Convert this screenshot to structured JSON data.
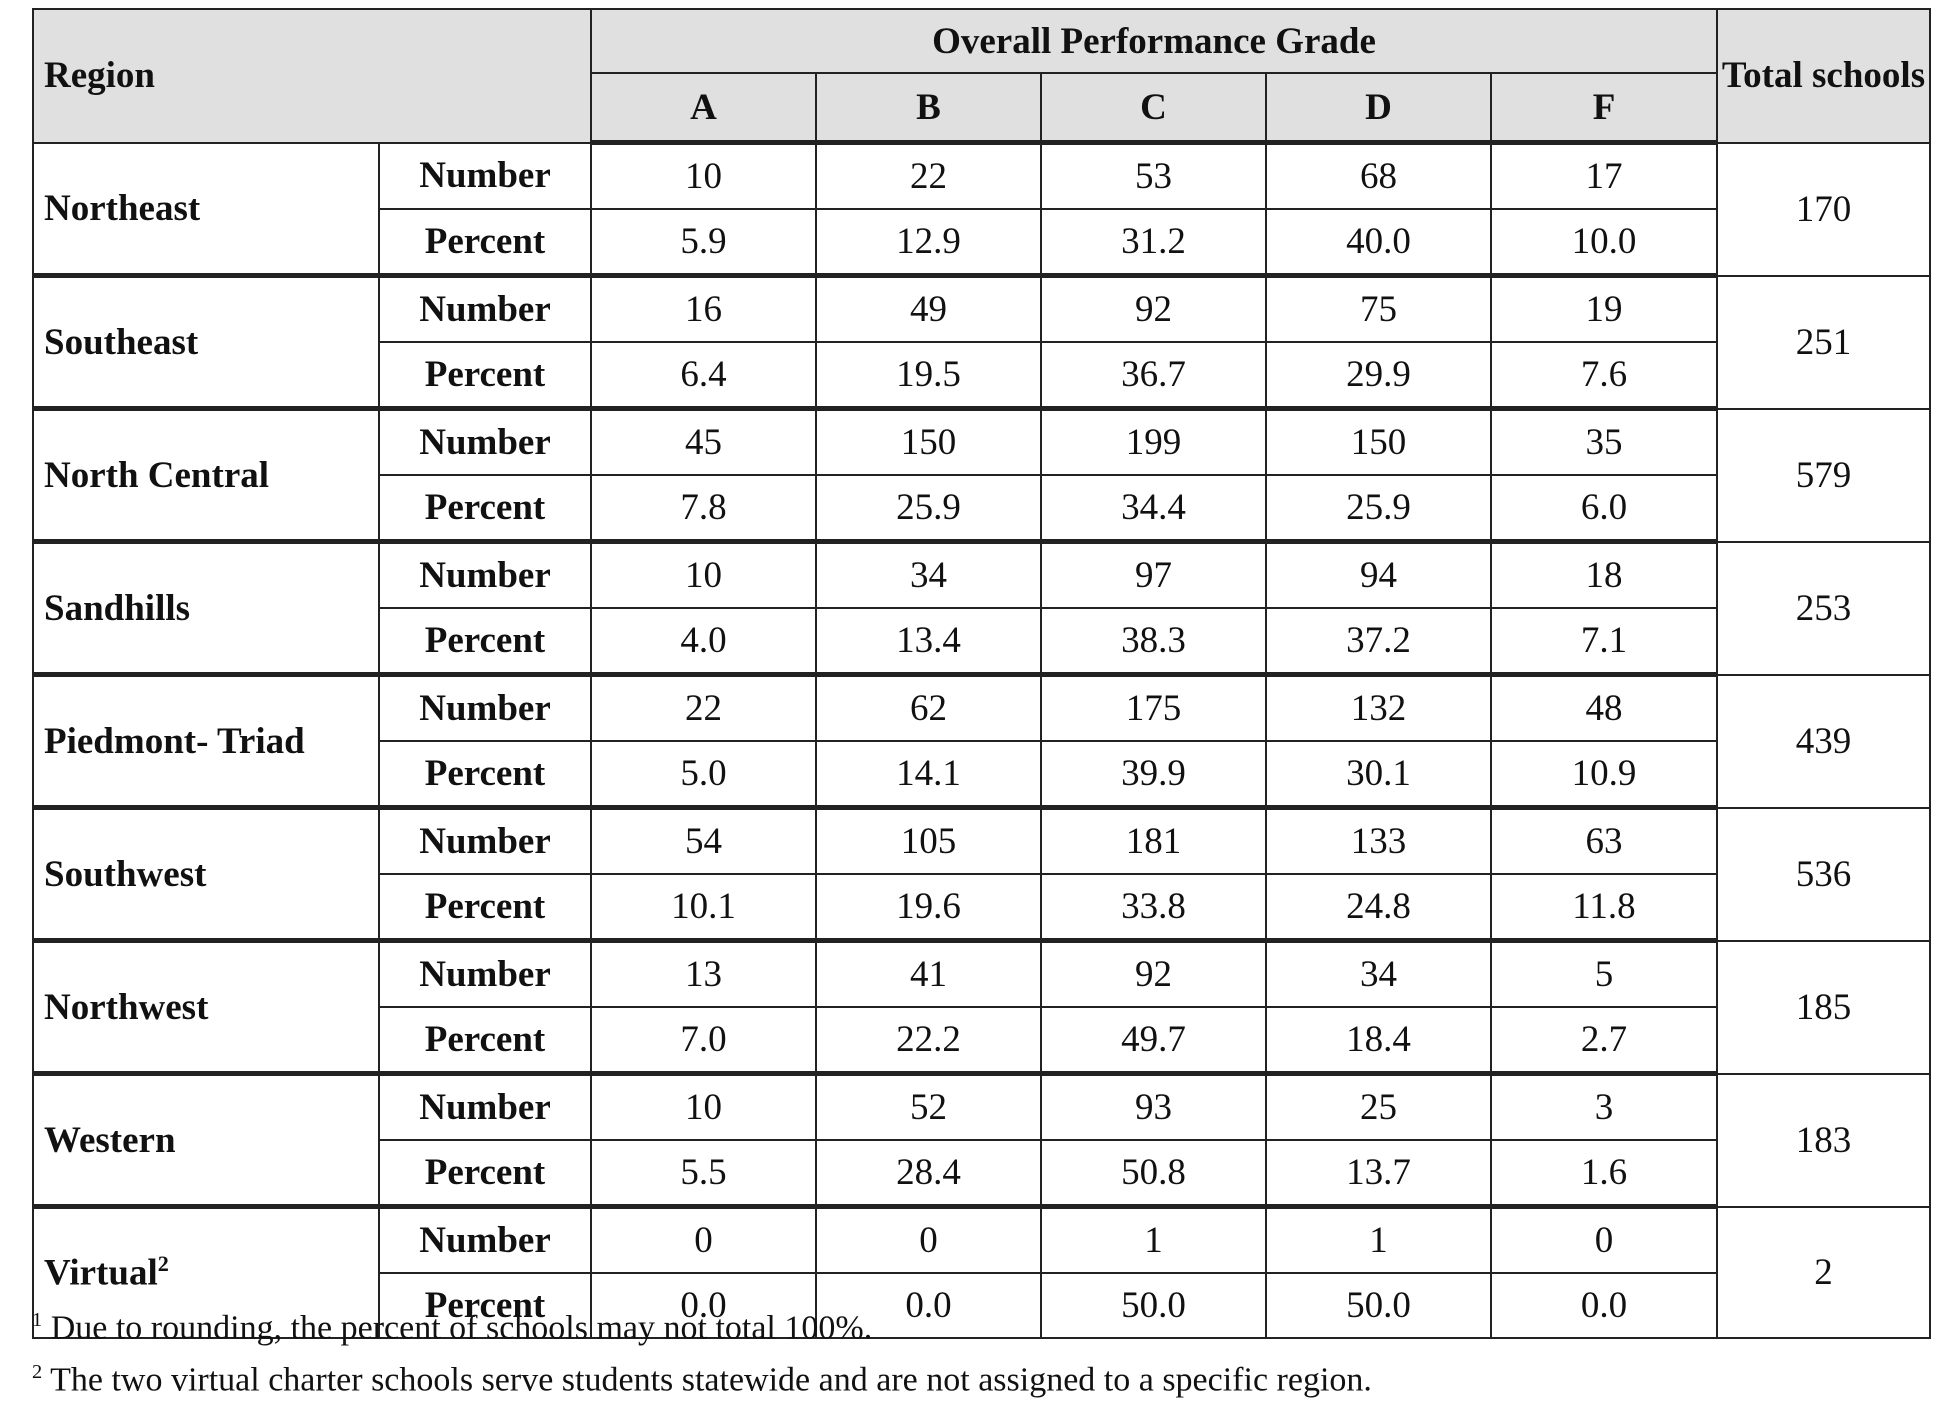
{
  "header": {
    "region": "Region",
    "group": "Overall Performance Grade",
    "grades": [
      "A",
      "B",
      "C",
      "D",
      "F"
    ],
    "total": "Total schools"
  },
  "row_labels": {
    "number": "Number",
    "percent": "Percent"
  },
  "rows": [
    {
      "region": "Northeast",
      "number": [
        "10",
        "22",
        "53",
        "68",
        "17"
      ],
      "percent": [
        "5.9",
        "12.9",
        "31.2",
        "40.0",
        "10.0"
      ],
      "total": "170"
    },
    {
      "region": "Southeast",
      "number": [
        "16",
        "49",
        "92",
        "75",
        "19"
      ],
      "percent": [
        "6.4",
        "19.5",
        "36.7",
        "29.9",
        "7.6"
      ],
      "total": "251"
    },
    {
      "region": "North Central",
      "number": [
        "45",
        "150",
        "199",
        "150",
        "35"
      ],
      "percent": [
        "7.8",
        "25.9",
        "34.4",
        "25.9",
        "6.0"
      ],
      "total": "579"
    },
    {
      "region": "Sandhills",
      "number": [
        "10",
        "34",
        "97",
        "94",
        "18"
      ],
      "percent": [
        "4.0",
        "13.4",
        "38.3",
        "37.2",
        "7.1"
      ],
      "total": "253"
    },
    {
      "region": "Piedmont- Triad",
      "number": [
        "22",
        "62",
        "175",
        "132",
        "48"
      ],
      "percent": [
        "5.0",
        "14.1",
        "39.9",
        "30.1",
        "10.9"
      ],
      "total": "439"
    },
    {
      "region": "Southwest",
      "number": [
        "54",
        "105",
        "181",
        "133",
        "63"
      ],
      "percent": [
        "10.1",
        "19.6",
        "33.8",
        "24.8",
        "11.8"
      ],
      "total": "536"
    },
    {
      "region": "Northwest",
      "number": [
        "13",
        "41",
        "92",
        "34",
        "5"
      ],
      "percent": [
        "7.0",
        "22.2",
        "49.7",
        "18.4",
        "2.7"
      ],
      "total": "185"
    },
    {
      "region": "Western",
      "number": [
        "10",
        "52",
        "93",
        "25",
        "3"
      ],
      "percent": [
        "5.5",
        "28.4",
        "50.8",
        "13.7",
        "1.6"
      ],
      "total": "183"
    },
    {
      "region": "Virtual",
      "region_note": "2",
      "number": [
        "0",
        "0",
        "1",
        "1",
        "0"
      ],
      "percent": [
        "0.0",
        "0.0",
        "50.0",
        "50.0",
        "0.0"
      ],
      "total": "2"
    }
  ],
  "footnotes": [
    {
      "mark": "1",
      "text": "Due to rounding, the percent of schools may not total 100%."
    },
    {
      "mark": "2",
      "text": "The two virtual charter schools serve students statewide and are not assigned to a specific region."
    }
  ]
}
